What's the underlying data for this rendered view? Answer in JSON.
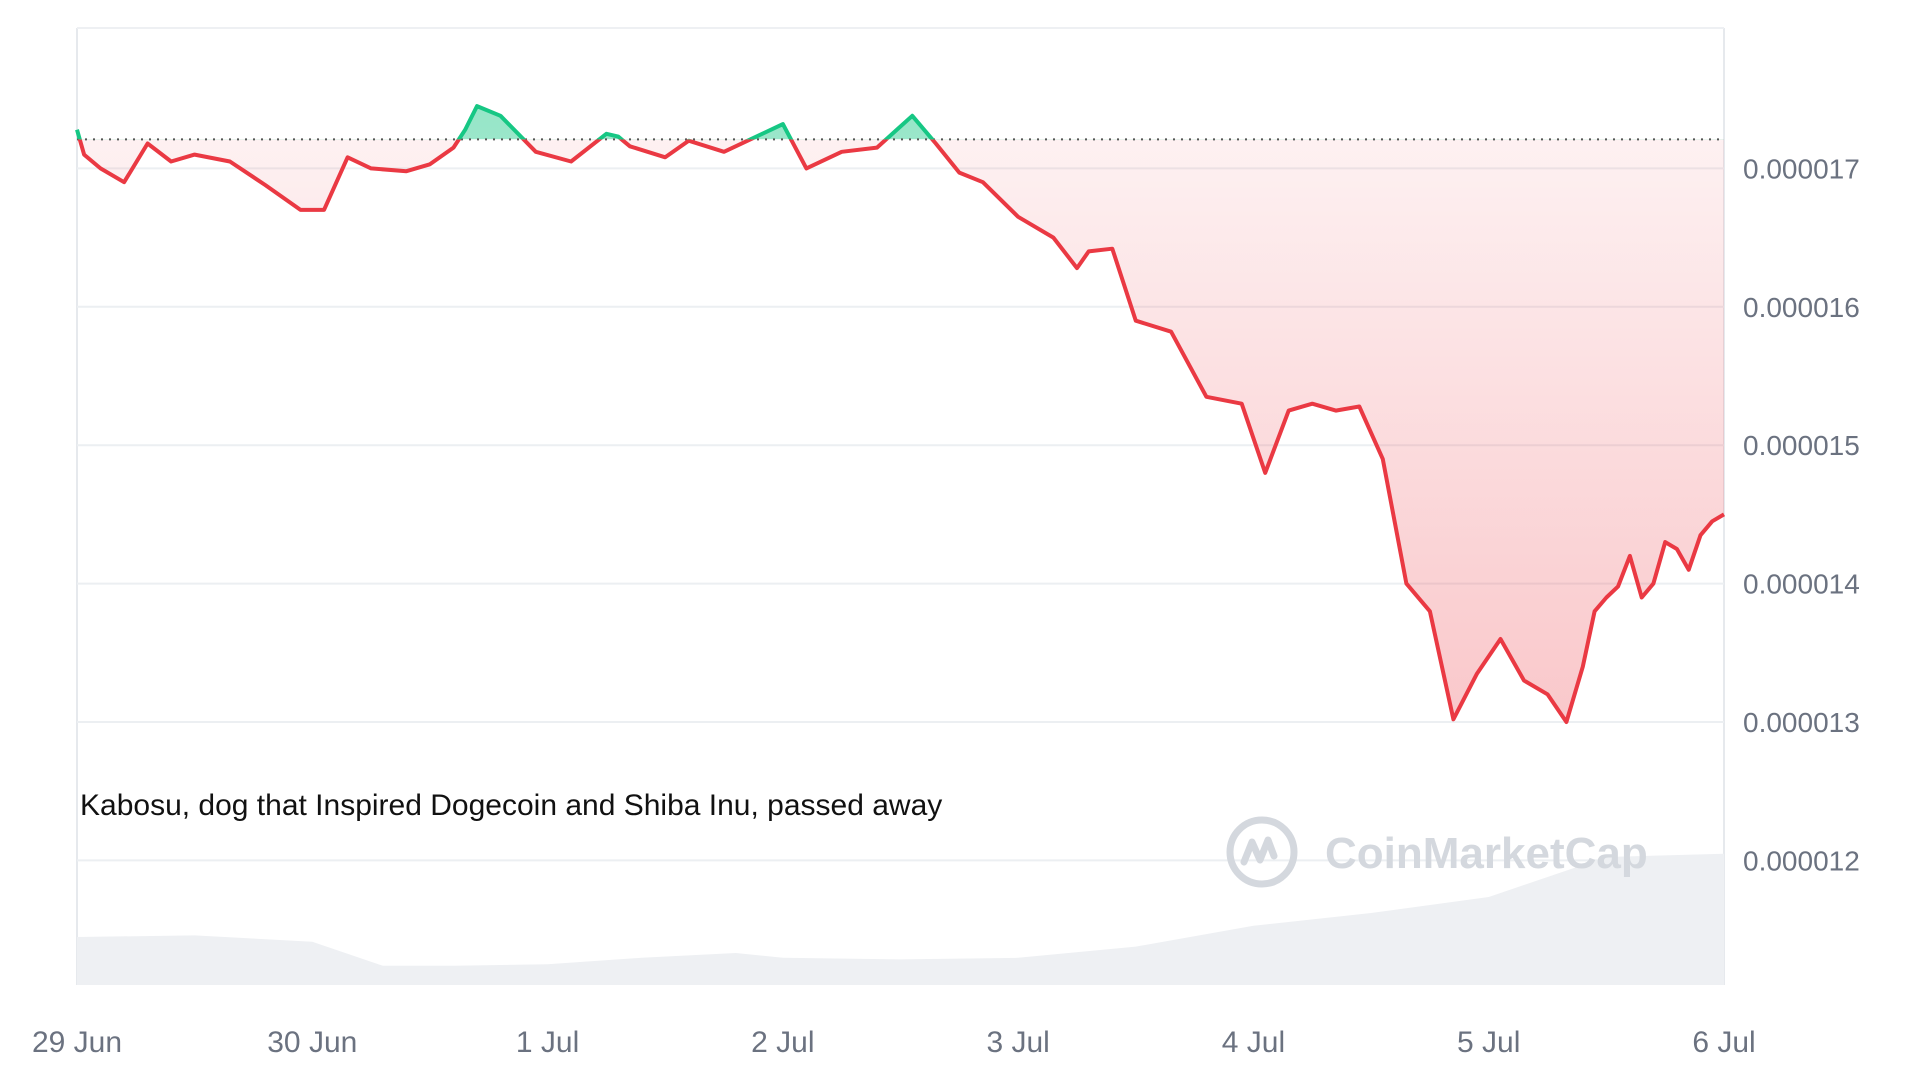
{
  "chart_data": {
    "type": "line",
    "title": "",
    "xlabel": "",
    "ylabel": "",
    "x_ticks": [
      "29 Jun",
      "30 Jun",
      "1 Jul",
      "2 Jul",
      "3 Jul",
      "4 Jul",
      "5 Jul",
      "6 Jul"
    ],
    "y_ticks": [
      "0.000017",
      "0.000016",
      "0.000015",
      "0.000014",
      "0.000013",
      "0.000012"
    ],
    "y_tick_values": [
      1.7e-05,
      1.6e-05,
      1.5e-05,
      1.4e-05,
      1.3e-05,
      1.2e-05
    ],
    "ylim": [
      1.11e-05,
      1.8e-05
    ],
    "xlim_days": [
      0,
      7
    ],
    "baseline": 1.721e-05,
    "annotation": "Kabosu, dog that Inspired Dogecoin and Shiba Inu, passed away",
    "watermark": "CoinMarketCap",
    "grid": true,
    "colors": {
      "up_line": "#16c784",
      "down_line": "#ea3943",
      "up_fill": "#16c784",
      "down_fill": "#ea3943",
      "grid": "#eceff2",
      "volume": "#eef0f3",
      "axis_text": "#6b7280"
    },
    "series": [
      {
        "x": [
          0.0,
          0.03,
          0.1,
          0.2,
          0.3,
          0.4,
          0.5,
          0.65,
          0.8,
          0.95,
          1.05,
          1.15,
          1.25,
          1.4,
          1.5,
          1.6,
          1.65,
          1.7,
          1.8,
          1.95,
          2.1,
          2.25,
          2.3,
          2.35,
          2.5,
          2.6,
          2.75,
          2.85,
          3.0,
          3.1,
          3.25,
          3.4,
          3.55,
          3.65,
          3.75,
          3.85,
          4.0,
          4.15,
          4.25,
          4.3,
          4.4,
          4.5,
          4.65,
          4.8,
          4.95,
          5.05,
          5.15,
          5.25,
          5.35,
          5.45,
          5.55,
          5.65,
          5.75,
          5.85,
          5.95,
          6.05,
          6.15,
          6.25,
          6.33,
          6.4,
          6.45,
          6.5,
          6.55,
          6.6,
          6.65,
          6.7,
          6.75,
          6.8,
          6.85,
          6.9,
          6.95,
          7.0
        ],
        "y": [
          1.728e-05,
          1.71e-05,
          1.7e-05,
          1.69e-05,
          1.718e-05,
          1.705e-05,
          1.71e-05,
          1.705e-05,
          1.688e-05,
          1.67e-05,
          1.67e-05,
          1.708e-05,
          1.7e-05,
          1.698e-05,
          1.703e-05,
          1.715e-05,
          1.728e-05,
          1.745e-05,
          1.738e-05,
          1.712e-05,
          1.705e-05,
          1.725e-05,
          1.723e-05,
          1.716e-05,
          1.708e-05,
          1.72e-05,
          1.712e-05,
          1.72e-05,
          1.732e-05,
          1.7e-05,
          1.712e-05,
          1.715e-05,
          1.738e-05,
          1.718e-05,
          1.697e-05,
          1.69e-05,
          1.665e-05,
          1.65e-05,
          1.628e-05,
          1.64e-05,
          1.642e-05,
          1.59e-05,
          1.582e-05,
          1.535e-05,
          1.53e-05,
          1.48e-05,
          1.525e-05,
          1.53e-05,
          1.525e-05,
          1.528e-05,
          1.49e-05,
          1.4e-05,
          1.38e-05,
          1.302e-05,
          1.335e-05,
          1.36e-05,
          1.33e-05,
          1.32e-05,
          1.3e-05,
          1.34e-05,
          1.38e-05,
          1.39e-05,
          1.398e-05,
          1.42e-05,
          1.39e-05,
          1.4e-05,
          1.43e-05,
          1.425e-05,
          1.41e-05,
          1.435e-05,
          1.445e-05,
          1.45e-05
        ]
      }
    ],
    "volume": {
      "x": [
        0.0,
        0.5,
        1.0,
        1.3,
        1.6,
        2.0,
        2.4,
        2.8,
        3.0,
        3.5,
        4.0,
        4.5,
        5.0,
        5.5,
        6.0,
        6.5,
        7.0
      ],
      "y": [
        0.3,
        0.31,
        0.27,
        0.12,
        0.12,
        0.13,
        0.17,
        0.2,
        0.17,
        0.16,
        0.17,
        0.24,
        0.37,
        0.45,
        0.55,
        0.8,
        0.82
      ]
    }
  }
}
